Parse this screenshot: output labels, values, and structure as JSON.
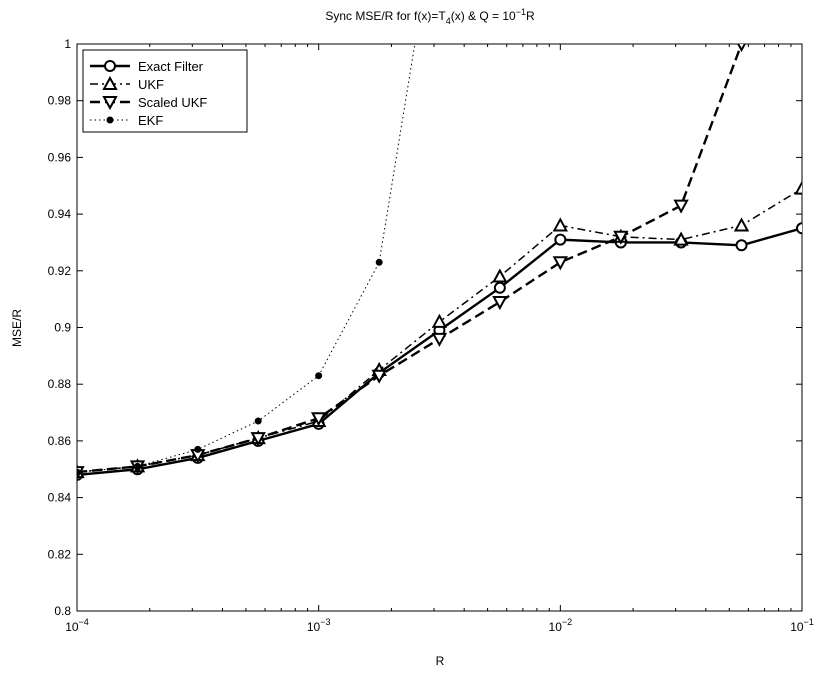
{
  "chart_data": {
    "type": "line",
    "title_main": "Sync MSE/R for f(x)=T",
    "title_sub": "4",
    "title_mid": "(x) & Q = 10",
    "title_sup": "−1",
    "title_end": "R",
    "xlabel": "R",
    "ylabel": "MSE/R",
    "xscale": "log",
    "xlim": [
      0.0001,
      0.1
    ],
    "ylim": [
      0.8,
      1.0
    ],
    "yticks": [
      "0.8",
      "0.82",
      "0.84",
      "0.86",
      "0.88",
      "0.9",
      "0.92",
      "0.94",
      "0.96",
      "0.98",
      "1"
    ],
    "xtick_base": "10",
    "xtick_exponents": [
      "−4",
      "−3",
      "−2",
      "−1"
    ],
    "legend_position": "top-left",
    "grid": false,
    "series": [
      {
        "name": "Exact Filter",
        "line": "solid",
        "marker": "circle",
        "x": [
          0.0001,
          0.000178,
          0.000316,
          0.000562,
          0.001,
          0.00178,
          0.00316,
          0.00562,
          0.01,
          0.0178,
          0.0316,
          0.0562,
          0.1
        ],
        "y": [
          0.848,
          0.85,
          0.854,
          0.86,
          0.866,
          0.884,
          0.899,
          0.914,
          0.931,
          0.93,
          0.93,
          0.929,
          0.935
        ]
      },
      {
        "name": "UKF",
        "line": "dashdot",
        "marker": "triangle-up",
        "x": [
          0.0001,
          0.000178,
          0.000316,
          0.000562,
          0.001,
          0.00178,
          0.00316,
          0.00562,
          0.01,
          0.0178,
          0.0316,
          0.0562,
          0.1
        ],
        "y": [
          0.849,
          0.851,
          0.855,
          0.861,
          0.867,
          0.885,
          0.902,
          0.918,
          0.936,
          0.932,
          0.931,
          0.936,
          0.949
        ]
      },
      {
        "name": "Scaled UKF",
        "line": "dashed",
        "marker": "triangle-down",
        "x": [
          0.0001,
          0.000178,
          0.000316,
          0.000562,
          0.001,
          0.00178,
          0.00316,
          0.00562,
          0.01,
          0.0178,
          0.0316,
          0.0562
        ],
        "y": [
          0.849,
          0.851,
          0.855,
          0.861,
          0.868,
          0.883,
          0.896,
          0.909,
          0.923,
          0.932,
          0.943,
          1.0
        ]
      },
      {
        "name": "EKF",
        "line": "dotted",
        "marker": "dot",
        "x": [
          0.0001,
          0.000178,
          0.000316,
          0.000562,
          0.001,
          0.00178,
          0.0025
        ],
        "y": [
          0.849,
          0.851,
          0.857,
          0.867,
          0.883,
          0.923,
          1.0
        ],
        "marker_count": 6
      }
    ]
  }
}
